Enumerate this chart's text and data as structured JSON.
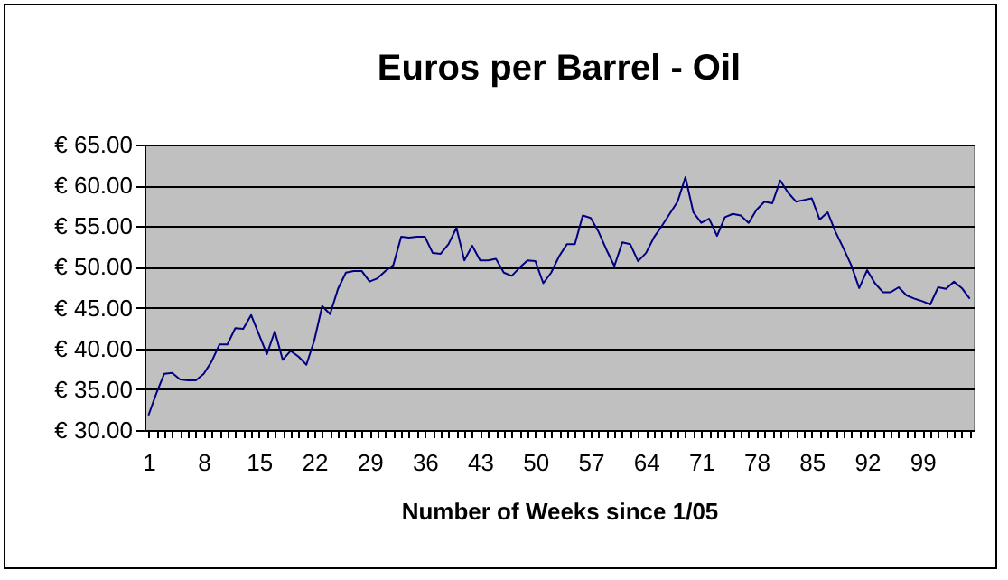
{
  "chart_data": {
    "type": "line",
    "title": "Euros per Barrel - Oil",
    "xlabel": "Number of Weeks since 1/05",
    "categories": [
      "1",
      null,
      null,
      null,
      null,
      null,
      null,
      "8",
      null,
      null,
      null,
      null,
      null,
      null,
      "15",
      null,
      null,
      null,
      null,
      null,
      null,
      "22",
      null,
      null,
      null,
      null,
      null,
      null,
      "29",
      null,
      null,
      null,
      null,
      null,
      null,
      "36",
      null,
      null,
      null,
      null,
      null,
      null,
      "43",
      null,
      null,
      null,
      null,
      null,
      null,
      "50",
      null,
      null,
      null,
      null,
      null,
      null,
      "57",
      null,
      null,
      null,
      null,
      null,
      null,
      "64",
      null,
      null,
      null,
      null,
      null,
      null,
      "71",
      null,
      null,
      null,
      null,
      null,
      null,
      "78",
      null,
      null,
      null,
      null,
      null,
      null,
      "85",
      null,
      null,
      null,
      null,
      null,
      null,
      "92",
      null,
      null,
      null,
      null,
      null,
      null,
      "99",
      null,
      null,
      null,
      null,
      null,
      null
    ],
    "series": [
      {
        "color": "#000080",
        "values": [
          31.8,
          34.5,
          36.9,
          37.0,
          36.2,
          36.1,
          36.1,
          36.9,
          38.4,
          40.5,
          40.5,
          42.5,
          42.4,
          44.1,
          41.7,
          39.3,
          42.1,
          38.6,
          39.7,
          39.0,
          38.0,
          41.0,
          45.2,
          44.2,
          47.3,
          49.3,
          49.5,
          49.5,
          48.2,
          48.6,
          49.5,
          50.2,
          53.7,
          53.6,
          53.7,
          53.7,
          51.7,
          51.6,
          52.8,
          54.8,
          50.8,
          52.6,
          50.8,
          50.8,
          51.0,
          49.3,
          48.9,
          49.9,
          50.8,
          50.7,
          48.0,
          49.3,
          51.3,
          52.8,
          52.8,
          56.3,
          56.0,
          54.3,
          52.1,
          50.1,
          53.0,
          52.8,
          50.7,
          51.7,
          53.6,
          55.0,
          56.5,
          58.0,
          61.0,
          56.7,
          55.4,
          55.9,
          53.8,
          56.1,
          56.5,
          56.3,
          55.4,
          57.0,
          58.0,
          57.8,
          60.6,
          59.1,
          58.0,
          58.2,
          58.4,
          55.8,
          56.7,
          54.3,
          52.3,
          50.2,
          47.4,
          49.6,
          48.0,
          46.9,
          46.9,
          47.5,
          46.5,
          46.1,
          45.8,
          45.4,
          47.5,
          47.3,
          48.2,
          47.4,
          46.1
        ]
      }
    ],
    "ylim": [
      30,
      65
    ],
    "yticks": [
      {
        "value": 30,
        "label": "€ 30.00"
      },
      {
        "value": 35,
        "label": "€ 35.00"
      },
      {
        "value": 40,
        "label": "€ 40.00"
      },
      {
        "value": 45,
        "label": "€ 45.00"
      },
      {
        "value": 50,
        "label": "€ 50.00"
      },
      {
        "value": 55,
        "label": "€ 55.00"
      },
      {
        "value": 60,
        "label": "€ 60.00"
      },
      {
        "value": 65,
        "label": "€ 65.00"
      }
    ],
    "grid": "y"
  }
}
